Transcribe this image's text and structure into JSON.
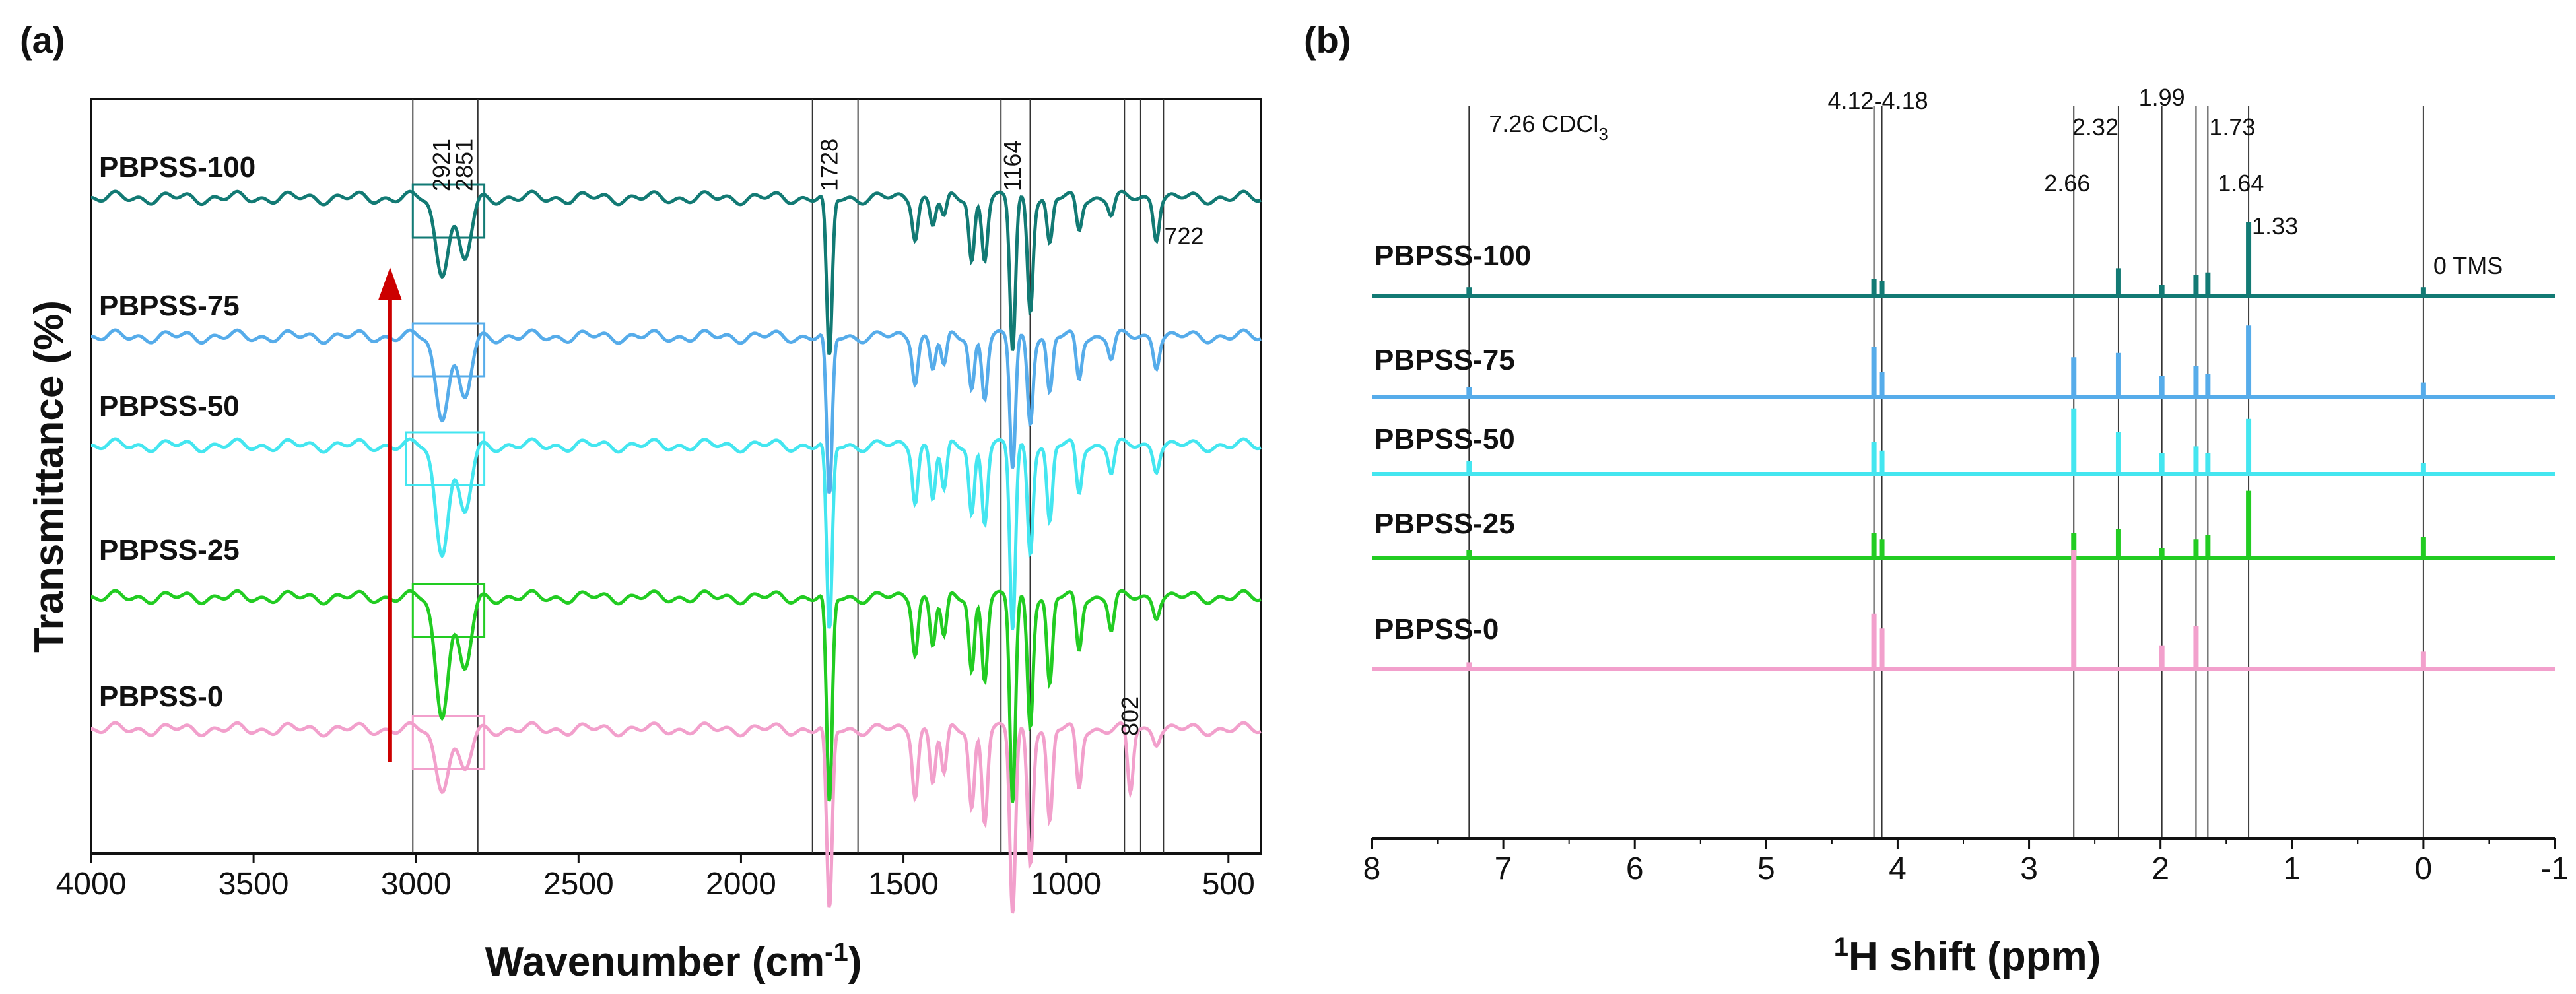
{
  "panels": [
    {
      "id": "a",
      "label": "(a)",
      "xlabel_main": "Wavenumber (cm",
      "xlabel_sup": "-1",
      "xlabel_end": ")",
      "ylabel": "Transmittance (%)"
    },
    {
      "id": "b",
      "label": "(b)",
      "xlabel_sup": "1",
      "xlabel_main": "H shift (ppm)"
    }
  ],
  "chart_data": [
    {
      "type": "line",
      "panel": "a",
      "xlim": [
        4000,
        400
      ],
      "xticks": [
        4000,
        3500,
        3000,
        2500,
        2000,
        1500,
        1000,
        500
      ],
      "xtick_labels": [
        "4000",
        "3500",
        "3000",
        "2500",
        "2000",
        "1500",
        "1000",
        "500"
      ],
      "reference_lines": [
        3010,
        2810,
        1780,
        1640,
        1200,
        1110,
        820,
        770,
        700
      ],
      "boxes": [
        {
          "x1": 3010,
          "x2": 2790,
          "series": "PBPSS-100"
        },
        {
          "x1": 3010,
          "x2": 2790,
          "series": "PBPSS-75"
        },
        {
          "x1": 3030,
          "x2": 2790,
          "series": "PBPSS-50"
        },
        {
          "x1": 3010,
          "x2": 2790,
          "series": "PBPSS-25"
        },
        {
          "x1": 3010,
          "x2": 2790,
          "series": "PBPSS-0"
        }
      ],
      "peak_labels": [
        {
          "text": "2921",
          "x": 2921,
          "series": "PBPSS-100"
        },
        {
          "text": "2851",
          "x": 2851,
          "series": "PBPSS-100"
        },
        {
          "text": "1728",
          "x": 1728,
          "series": "PBPSS-100"
        },
        {
          "text": "1164",
          "x": 1164,
          "series": "PBPSS-100"
        },
        {
          "text": "722",
          "x": 722,
          "series": "PBPSS-100"
        },
        {
          "text": "802",
          "x": 802,
          "series": "PBPSS-0"
        }
      ],
      "arrow": {
        "x": 3080,
        "from": "PBPSS-0",
        "to": "PBPSS-100",
        "color": "#cc0000"
      },
      "series": [
        {
          "name": "PBPSS-100",
          "color": "#127a74",
          "peaks": [
            [
              2921,
              28
            ],
            [
              2851,
              24
            ],
            [
              1728,
              62
            ],
            [
              1464,
              14
            ],
            [
              1410,
              10
            ],
            [
              1375,
              8
            ],
            [
              1290,
              24
            ],
            [
              1250,
              22
            ],
            [
              1164,
              58
            ],
            [
              1110,
              42
            ],
            [
              1050,
              18
            ],
            [
              960,
              12
            ],
            [
              860,
              6
            ],
            [
              722,
              14
            ]
          ]
        },
        {
          "name": "PBPSS-75",
          "color": "#56acea",
          "peaks": [
            [
              2921,
              30
            ],
            [
              2851,
              24
            ],
            [
              1728,
              62
            ],
            [
              1464,
              16
            ],
            [
              1410,
              12
            ],
            [
              1375,
              12
            ],
            [
              1290,
              20
            ],
            [
              1250,
              22
            ],
            [
              1164,
              50
            ],
            [
              1110,
              32
            ],
            [
              1050,
              22
            ],
            [
              960,
              16
            ],
            [
              860,
              8
            ],
            [
              722,
              10
            ]
          ]
        },
        {
          "name": "PBPSS-50",
          "color": "#44e6f0",
          "peaks": [
            [
              2921,
              40
            ],
            [
              2851,
              26
            ],
            [
              1728,
              72
            ],
            [
              1464,
              20
            ],
            [
              1410,
              20
            ],
            [
              1375,
              18
            ],
            [
              1290,
              26
            ],
            [
              1250,
              28
            ],
            [
              1164,
              70
            ],
            [
              1110,
              40
            ],
            [
              1050,
              30
            ],
            [
              960,
              18
            ],
            [
              860,
              10
            ],
            [
              722,
              8
            ]
          ]
        },
        {
          "name": "PBPSS-25",
          "color": "#22cc22",
          "peaks": [
            [
              2921,
              44
            ],
            [
              2851,
              28
            ],
            [
              1728,
              80
            ],
            [
              1464,
              20
            ],
            [
              1410,
              18
            ],
            [
              1375,
              16
            ],
            [
              1290,
              28
            ],
            [
              1250,
              30
            ],
            [
              1164,
              78
            ],
            [
              1110,
              48
            ],
            [
              1050,
              34
            ],
            [
              960,
              20
            ],
            [
              860,
              12
            ],
            [
              722,
              6
            ]
          ]
        },
        {
          "name": "PBPSS-0",
          "color": "#f2a0cc",
          "peaks": [
            [
              2921,
              22
            ],
            [
              2851,
              16
            ],
            [
              1728,
              70
            ],
            [
              1464,
              24
            ],
            [
              1410,
              20
            ],
            [
              1375,
              18
            ],
            [
              1290,
              30
            ],
            [
              1250,
              34
            ],
            [
              1164,
              70
            ],
            [
              1110,
              50
            ],
            [
              1050,
              36
            ],
            [
              960,
              22
            ],
            [
              802,
              24
            ],
            [
              722,
              4
            ]
          ]
        }
      ]
    },
    {
      "type": "line",
      "panel": "b",
      "xlim": [
        8,
        -1
      ],
      "xticks": [
        8,
        7,
        6,
        5,
        4,
        3,
        2,
        1,
        0,
        -1
      ],
      "xtick_labels": [
        "8",
        "7",
        "6",
        "5",
        "4",
        "3",
        "2",
        "1",
        "0",
        "-1"
      ],
      "reference_lines": [
        7.26,
        4.18,
        4.12,
        2.66,
        2.32,
        1.99,
        1.73,
        1.64,
        1.33,
        0
      ],
      "annotations": [
        {
          "text": "7.26 CDCl",
          "sub": "3",
          "x": 7.26
        },
        {
          "text": "4.12-4.18",
          "x": 4.15
        },
        {
          "text": "1.99",
          "x": 1.99
        },
        {
          "text": "2.32",
          "x": 2.32
        },
        {
          "text": "1.73",
          "x": 1.73
        },
        {
          "text": "2.66",
          "x": 2.66
        },
        {
          "text": "1.64",
          "x": 1.64
        },
        {
          "text": "1.33",
          "x": 1.33
        },
        {
          "text": "0 TMS",
          "x": 0
        }
      ],
      "series": [
        {
          "name": "PBPSS-100",
          "color": "#127a74",
          "peaks": [
            [
              7.26,
              8
            ],
            [
              4.18,
              16
            ],
            [
              4.12,
              14
            ],
            [
              2.32,
              26
            ],
            [
              1.99,
              10
            ],
            [
              1.73,
              20
            ],
            [
              1.64,
              22
            ],
            [
              1.33,
              70
            ],
            [
              0,
              8
            ]
          ]
        },
        {
          "name": "PBPSS-75",
          "color": "#56acea",
          "peaks": [
            [
              7.26,
              10
            ],
            [
              4.18,
              48
            ],
            [
              4.12,
              24
            ],
            [
              2.66,
              38
            ],
            [
              2.32,
              42
            ],
            [
              1.99,
              20
            ],
            [
              1.73,
              30
            ],
            [
              1.64,
              22
            ],
            [
              1.33,
              68
            ],
            [
              0,
              14
            ]
          ]
        },
        {
          "name": "PBPSS-50",
          "color": "#44e6f0",
          "peaks": [
            [
              7.26,
              12
            ],
            [
              4.18,
              30
            ],
            [
              4.12,
              22
            ],
            [
              2.66,
              62
            ],
            [
              2.32,
              40
            ],
            [
              1.99,
              20
            ],
            [
              1.73,
              26
            ],
            [
              1.64,
              20
            ],
            [
              1.33,
              52
            ],
            [
              0,
              10
            ]
          ]
        },
        {
          "name": "PBPSS-25",
          "color": "#22cc22",
          "peaks": [
            [
              7.26,
              8
            ],
            [
              4.18,
              24
            ],
            [
              4.12,
              18
            ],
            [
              2.66,
              24
            ],
            [
              2.32,
              28
            ],
            [
              1.99,
              10
            ],
            [
              1.73,
              18
            ],
            [
              1.64,
              22
            ],
            [
              1.33,
              64
            ],
            [
              0,
              20
            ]
          ]
        },
        {
          "name": "PBPSS-0",
          "color": "#f2a0cc",
          "peaks": [
            [
              7.26,
              6
            ],
            [
              4.18,
              52
            ],
            [
              4.12,
              38
            ],
            [
              2.66,
              112
            ],
            [
              1.99,
              22
            ],
            [
              1.73,
              40
            ],
            [
              0,
              16
            ]
          ]
        }
      ]
    }
  ]
}
